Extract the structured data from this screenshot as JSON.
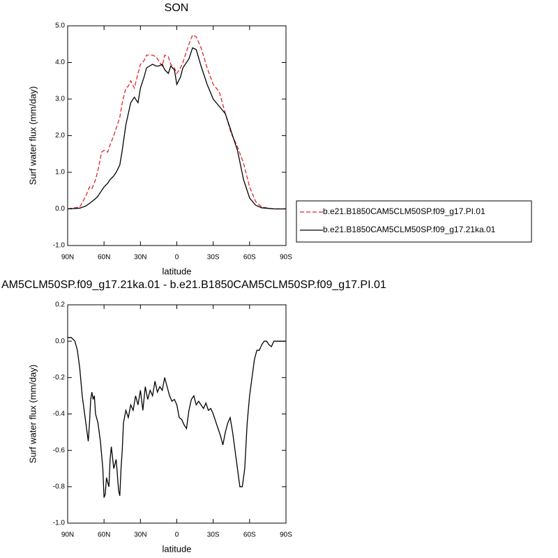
{
  "chart_data": [
    {
      "type": "line",
      "title": "SON",
      "xlabel": "latitude",
      "ylabel": "Surf water flux (mm/day)",
      "x": [
        90,
        80,
        75,
        72,
        70,
        67,
        65,
        62,
        60,
        57,
        55,
        52,
        50,
        47,
        45,
        42,
        40,
        38,
        35,
        32,
        30,
        27,
        25,
        20,
        17,
        15,
        12,
        10,
        7,
        5,
        2,
        0,
        -3,
        -5,
        -10,
        -13,
        -16,
        -20,
        -25,
        -30,
        -35,
        -40,
        -45,
        -50,
        -55,
        -60,
        -65,
        -70,
        -80,
        -90
      ],
      "series": [
        {
          "name": "b.e21.B1850CAM5CLM50SP.f09_g17.PI.01",
          "color": "#e0262a",
          "dash": "dashed",
          "values": [
            0,
            0.05,
            0.35,
            0.6,
            0.55,
            0.8,
            1.05,
            1.55,
            1.6,
            1.55,
            1.75,
            2.0,
            2.2,
            2.5,
            2.9,
            3.3,
            3.35,
            3.5,
            3.3,
            3.7,
            3.95,
            4.05,
            4.2,
            4.2,
            4.15,
            4.05,
            3.9,
            4.2,
            4.15,
            3.95,
            3.85,
            3.7,
            3.85,
            4.0,
            4.5,
            4.75,
            4.7,
            4.4,
            3.85,
            3.4,
            3.2,
            2.6,
            2.05,
            1.7,
            1.25,
            0.6,
            0.2,
            0.05,
            0,
            0
          ]
        },
        {
          "name": "b.e21.B1850CAM5CLM50SP.f09_g17.21ka.01",
          "color": "#000000",
          "dash": "solid",
          "values": [
            0,
            0.02,
            0.08,
            0.15,
            0.2,
            0.28,
            0.35,
            0.5,
            0.6,
            0.7,
            0.8,
            0.9,
            1.0,
            1.2,
            1.6,
            2.3,
            2.6,
            2.9,
            3.05,
            2.9,
            3.3,
            3.6,
            3.85,
            3.95,
            3.9,
            3.9,
            3.95,
            3.8,
            3.7,
            3.9,
            3.8,
            3.4,
            3.6,
            3.85,
            4.1,
            4.4,
            4.35,
            3.9,
            3.4,
            3.0,
            2.8,
            2.6,
            2.1,
            1.6,
            0.8,
            0.3,
            0.1,
            0.03,
            0,
            0
          ]
        }
      ],
      "xlim": [
        90,
        -90
      ],
      "xticks": [
        {
          "value": 90,
          "label": "90N"
        },
        {
          "value": 60,
          "label": "60N"
        },
        {
          "value": 30,
          "label": "30N"
        },
        0,
        {
          "value": -30,
          "label": "30S"
        },
        {
          "value": -60,
          "label": "60S"
        },
        {
          "value": -90,
          "label": "90S"
        }
      ],
      "ylim": [
        -1,
        5
      ],
      "yticks": [
        {
          "value": 5,
          "label": "5.0"
        },
        {
          "value": 4,
          "label": "4.0"
        },
        {
          "value": 3,
          "label": "3.0"
        },
        {
          "value": 2,
          "label": "2.0"
        },
        {
          "value": 1,
          "label": "1.0"
        },
        {
          "value": 0,
          "label": "0.0"
        },
        {
          "value": -1,
          "label": "-1.0"
        }
      ],
      "legend": "right"
    },
    {
      "type": "line",
      "title": "AM5CLM50SP.f09_g17.21ka.01 - b.e21.B1850CAM5CLM50SP.f09_g17.PI.01",
      "xlabel": "latitude",
      "ylabel": "Surf water flux (mm/day)",
      "x": [
        90,
        87,
        84,
        82,
        80,
        78,
        76,
        74,
        73,
        72,
        71,
        70,
        69,
        68,
        67,
        65,
        63,
        61,
        60,
        59,
        58,
        56,
        55,
        54,
        52,
        50,
        48,
        47,
        46,
        45,
        44,
        42,
        40,
        38,
        36,
        34,
        32,
        30,
        28,
        26,
        24,
        22,
        20,
        18,
        16,
        14,
        12,
        10,
        8,
        6,
        4,
        2,
        0,
        -2,
        -4,
        -6,
        -8,
        -10,
        -12,
        -14,
        -16,
        -18,
        -20,
        -22,
        -24,
        -26,
        -28,
        -30,
        -32,
        -34,
        -36,
        -38,
        -40,
        -42,
        -44,
        -46,
        -48,
        -50,
        -52,
        -54,
        -56,
        -58,
        -60,
        -62,
        -64,
        -66,
        -68,
        -70,
        -72,
        -74,
        -76,
        -78,
        -80,
        -84,
        -90
      ],
      "series": [
        {
          "color": "#000000",
          "dash": "solid",
          "values": [
            0.02,
            0.02,
            0.0,
            -0.05,
            -0.15,
            -0.3,
            -0.4,
            -0.5,
            -0.55,
            -0.45,
            -0.32,
            -0.28,
            -0.32,
            -0.3,
            -0.4,
            -0.45,
            -0.55,
            -0.7,
            -0.86,
            -0.84,
            -0.75,
            -0.8,
            -0.65,
            -0.58,
            -0.7,
            -0.65,
            -0.82,
            -0.85,
            -0.7,
            -0.6,
            -0.45,
            -0.38,
            -0.42,
            -0.35,
            -0.38,
            -0.3,
            -0.35,
            -0.27,
            -0.38,
            -0.25,
            -0.32,
            -0.27,
            -0.3,
            -0.22,
            -0.28,
            -0.25,
            -0.27,
            -0.2,
            -0.25,
            -0.3,
            -0.33,
            -0.32,
            -0.35,
            -0.42,
            -0.43,
            -0.46,
            -0.48,
            -0.38,
            -0.32,
            -0.3,
            -0.35,
            -0.33,
            -0.35,
            -0.37,
            -0.34,
            -0.38,
            -0.37,
            -0.4,
            -0.44,
            -0.48,
            -0.52,
            -0.57,
            -0.5,
            -0.45,
            -0.42,
            -0.5,
            -0.6,
            -0.7,
            -0.8,
            -0.8,
            -0.7,
            -0.45,
            -0.3,
            -0.2,
            -0.1,
            -0.05,
            -0.05,
            -0.02,
            0.0,
            0.0,
            -0.02,
            -0.03,
            0.0,
            0.0,
            0.0
          ]
        }
      ],
      "xlim": [
        90,
        -90
      ],
      "xticks": [
        {
          "value": 90,
          "label": "90N"
        },
        {
          "value": 60,
          "label": "60N"
        },
        {
          "value": 30,
          "label": "30N"
        },
        0,
        {
          "value": -30,
          "label": "30S"
        },
        {
          "value": -60,
          "label": "60S"
        },
        {
          "value": -90,
          "label": "90S"
        }
      ],
      "ylim": [
        -1,
        0.2
      ],
      "yticks": [
        {
          "value": 0.2,
          "label": "0.2"
        },
        {
          "value": 0,
          "label": "0.0"
        },
        {
          "value": -0.2,
          "label": "-0.2"
        },
        {
          "value": -0.4,
          "label": "-0.4"
        },
        {
          "value": -0.6,
          "label": "-0.6"
        },
        {
          "value": -0.8,
          "label": "-0.8"
        },
        {
          "value": -1,
          "label": "-1.0"
        }
      ]
    }
  ]
}
